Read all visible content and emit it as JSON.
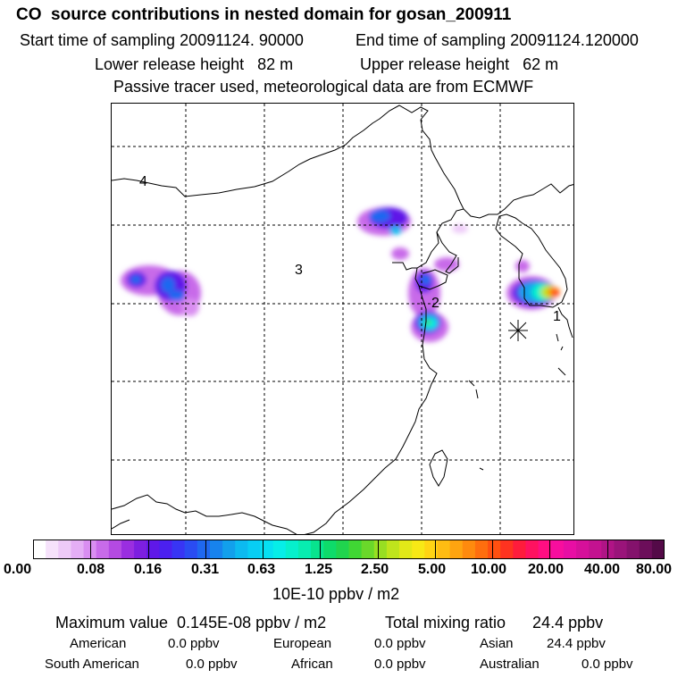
{
  "title": "CO  source contributions in nested domain for gosan_200911",
  "sampling": {
    "start": "Start time of sampling 20091124. 90000",
    "end": "End time of sampling 20091124.120000"
  },
  "release": {
    "lower": "Lower release height   82 m",
    "upper": "Upper release height   62 m"
  },
  "note": "Passive tracer used, meteorological data are from ECMWF",
  "map": {
    "region_labels": [
      "1",
      "2",
      "3",
      "4"
    ],
    "colors": {
      "coast": "#000000",
      "grid": "#000000",
      "marker": "#000000"
    }
  },
  "colorbar": {
    "ticks": [
      "0.00",
      "0.08",
      "0.16",
      "0.31",
      "0.63",
      "1.25",
      "2.50",
      "5.00",
      "10.00",
      "20.00",
      "40.00",
      "80.00"
    ],
    "unit": "10E-10 ppbv / m2",
    "colors": [
      "#ffffff",
      "#f6e2fb",
      "#eecaf8",
      "#e4aef5",
      "#d98ef1",
      "#c86be9",
      "#b44ae2",
      "#9a2ee0",
      "#7d1fe0",
      "#5f18e8",
      "#4b20f0",
      "#3835f4",
      "#2a4cf2",
      "#1f68f0",
      "#1783ee",
      "#12a0ec",
      "#0cbaf0",
      "#08cef4",
      "#06e0f2",
      "#06eee8",
      "#06f0cc",
      "#08ecb0",
      "#08e48e",
      "#0edb6a",
      "#20d44e",
      "#40d634",
      "#6ad82a",
      "#98de22",
      "#bfe41c",
      "#e2e818",
      "#f7e816",
      "#ffd414",
      "#ffbc12",
      "#ffa410",
      "#ff8a0e",
      "#ff6e0e",
      "#ff5010",
      "#ff3320",
      "#ff1c3c",
      "#ff1260",
      "#ff0e82",
      "#f80e9e",
      "#e80ea4",
      "#d6109a",
      "#c41290",
      "#b01486",
      "#9a147a",
      "#84126c",
      "#6c0e5a",
      "#540a48"
    ]
  },
  "stats": {
    "max": "Maximum value  0.145E-08 ppbv / m2",
    "total": "Total mixing ratio      24.4 ppbv",
    "sources": [
      {
        "name": "American",
        "value": "0.0 ppbv"
      },
      {
        "name": "European",
        "value": "0.0 ppbv"
      },
      {
        "name": "Asian",
        "value": "24.4 ppbv"
      },
      {
        "name": "South American",
        "value": "0.0 ppbv"
      },
      {
        "name": "African",
        "value": "0.0 ppbv"
      },
      {
        "name": "Australian",
        "value": "0.0 ppbv"
      }
    ]
  }
}
